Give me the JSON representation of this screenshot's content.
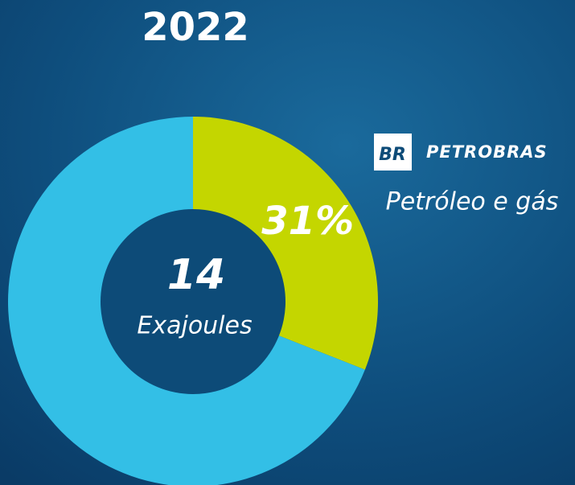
{
  "chart_data": {
    "type": "pie",
    "title": "2022",
    "categories": [
      "Petróleo e gás",
      null
    ],
    "values": [
      31,
      69
    ],
    "value_labels": [
      "31%",
      null
    ],
    "colors": [
      "#c4d600",
      "#33bfe6"
    ],
    "center_value": 14,
    "center_label": "Exajoules",
    "logo": "BR",
    "brand": "PETROBRAS"
  }
}
